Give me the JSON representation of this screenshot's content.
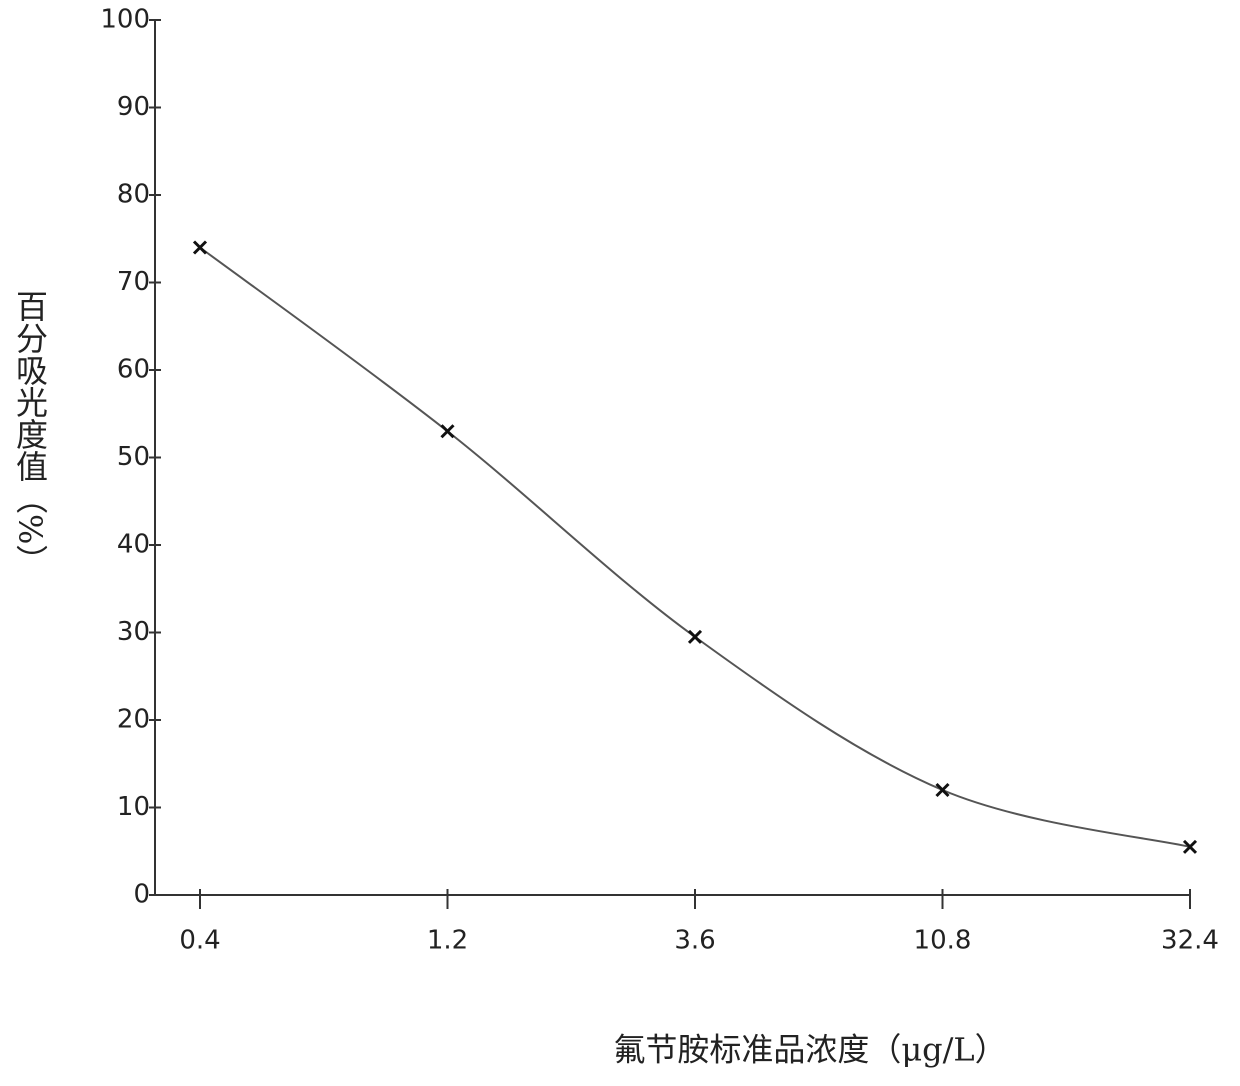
{
  "chart_data": {
    "type": "line",
    "y_label": "百分吸光度值（%）",
    "x_label": "氟节胺标准品浓度（μg/L）",
    "categories": [
      "0.4",
      "1.2",
      "3.6",
      "10.8",
      "32.4"
    ],
    "series": [
      {
        "color": "#555555",
        "values": [
          74,
          53,
          29.5,
          12,
          5.5
        ]
      }
    ],
    "ylim": [
      0,
      100
    ],
    "yticks": [
      0,
      10,
      20,
      30,
      40,
      50,
      60,
      70,
      80,
      90,
      100
    ],
    "grid": false
  }
}
